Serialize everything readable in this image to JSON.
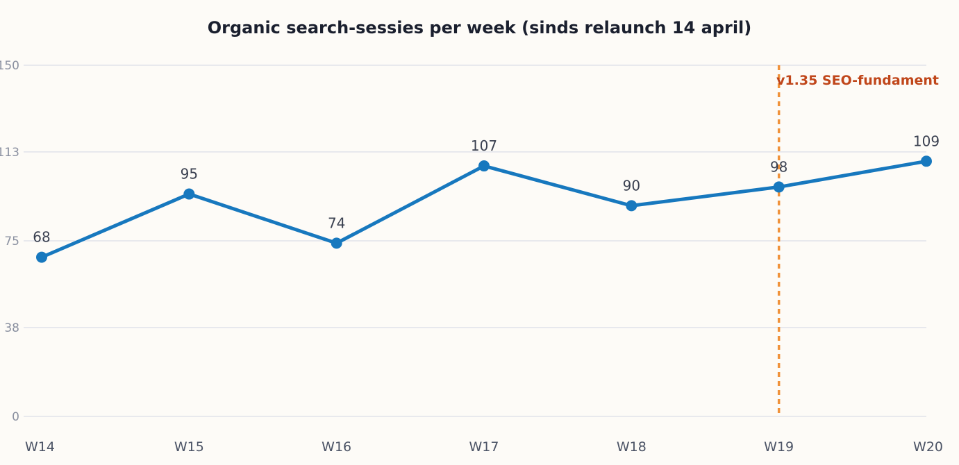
{
  "chart_data": {
    "type": "line",
    "title": "Organic search-sessies per week (sinds relaunch 14 april)",
    "xlabel": "",
    "ylabel": "",
    "categories": [
      "W14",
      "W15",
      "W16",
      "W17",
      "W18",
      "W19",
      "W20"
    ],
    "series": [
      {
        "values": [
          68,
          95,
          74,
          107,
          90,
          98,
          109
        ]
      }
    ],
    "data_labels": [
      "68",
      "95",
      "74",
      "107",
      "90",
      "98",
      "109"
    ],
    "ylim": [
      0,
      150
    ],
    "yticks": [
      0,
      38,
      75,
      113,
      150
    ],
    "ytick_labels": [
      "0",
      "38",
      "75",
      "113",
      "150"
    ],
    "grid": true,
    "annotation": {
      "x": "W19",
      "label": "v1.35 SEO-fundament"
    },
    "colors": {
      "line": "#1778be",
      "annotation_line": "#f0923b",
      "annotation_text": "#c0461a",
      "grid": "#e1e3ea",
      "background": "#fdfbf7"
    }
  }
}
